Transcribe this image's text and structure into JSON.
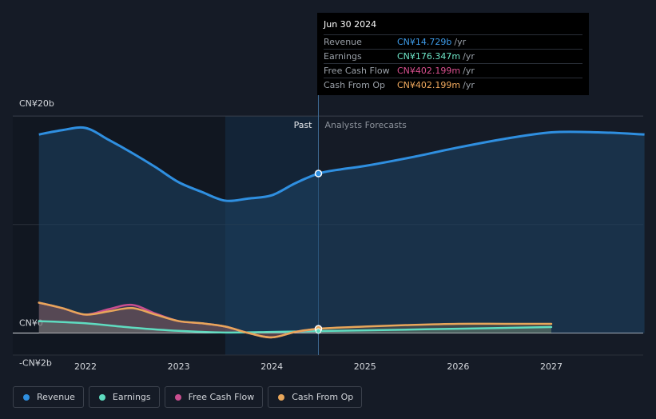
{
  "tooltip": {
    "date": "Jun 30 2024",
    "rows": [
      {
        "label": "Revenue",
        "value": "CN¥14.729b",
        "unit": "/yr",
        "color": "#3d9be9"
      },
      {
        "label": "Earnings",
        "value": "CN¥176.347m",
        "unit": "/yr",
        "color": "#6ee7c8"
      },
      {
        "label": "Free Cash Flow",
        "value": "CN¥402.199m",
        "unit": "/yr",
        "color": "#d9508f"
      },
      {
        "label": "Cash From Op",
        "value": "CN¥402.199m",
        "unit": "/yr",
        "color": "#f0a95e"
      }
    ]
  },
  "labels": {
    "past": "Past",
    "forecast": "Analysts Forecasts"
  },
  "legend": [
    {
      "label": "Revenue",
      "color": "#2f8fe0"
    },
    {
      "label": "Earnings",
      "color": "#5fdcc0"
    },
    {
      "label": "Free Cash Flow",
      "color": "#c94e8f"
    },
    {
      "label": "Cash From Op",
      "color": "#e8a65a"
    }
  ],
  "chart_data": {
    "type": "line",
    "y_tick_labels": [
      "CN¥20b",
      "CN¥0",
      "-CN¥2b"
    ],
    "ylim": [
      -2,
      20
    ],
    "x_tick_labels": [
      "2022",
      "2023",
      "2024",
      "2025",
      "2026",
      "2027"
    ],
    "xlim": [
      2021.5,
      2028.0
    ],
    "divider_x": 2024.5,
    "highlight_range": [
      2023.5,
      2024.5
    ],
    "grid": true,
    "legend_position": "bottom-left",
    "series": [
      {
        "name": "Revenue",
        "color": "#2f8fe0",
        "x": [
          2021.5,
          2021.75,
          2022.0,
          2022.25,
          2022.5,
          2022.75,
          2023.0,
          2023.25,
          2023.5,
          2023.75,
          2024.0,
          2024.25,
          2024.5,
          2024.75,
          2025.0,
          2025.5,
          2026.0,
          2026.5,
          2027.0,
          2027.5,
          2028.0
        ],
        "y": [
          18.3,
          18.7,
          18.9,
          17.8,
          16.6,
          15.3,
          13.9,
          13.0,
          12.2,
          12.4,
          12.7,
          13.8,
          14.7,
          15.1,
          15.4,
          16.2,
          17.1,
          17.9,
          18.5,
          18.5,
          18.3
        ]
      },
      {
        "name": "Earnings",
        "color": "#5fdcc0",
        "x": [
          2021.5,
          2022.0,
          2022.5,
          2023.0,
          2023.5,
          2024.0,
          2024.5,
          2025.0,
          2026.0,
          2027.0
        ],
        "y": [
          1.1,
          0.9,
          0.5,
          0.2,
          0.05,
          0.1,
          0.18,
          0.25,
          0.4,
          0.55
        ]
      },
      {
        "name": "Free Cash Flow",
        "color": "#c94e8f",
        "x": [
          2021.5,
          2021.75,
          2022.0,
          2022.25,
          2022.5,
          2022.75,
          2023.0,
          2023.25,
          2023.5,
          2023.75,
          2024.0,
          2024.25,
          2024.5
        ],
        "y": [
          2.8,
          2.3,
          1.7,
          2.2,
          2.6,
          1.8,
          1.1,
          0.9,
          0.6,
          0.0,
          -0.4,
          0.1,
          0.4
        ]
      },
      {
        "name": "Cash From Op",
        "color": "#e8a65a",
        "x": [
          2021.5,
          2021.75,
          2022.0,
          2022.25,
          2022.5,
          2022.75,
          2023.0,
          2023.25,
          2023.5,
          2023.75,
          2024.0,
          2024.25,
          2024.5,
          2025.0,
          2025.5,
          2026.0,
          2026.5,
          2027.0
        ],
        "y": [
          2.8,
          2.3,
          1.7,
          2.0,
          2.3,
          1.7,
          1.1,
          0.9,
          0.6,
          0.0,
          -0.4,
          0.1,
          0.4,
          0.6,
          0.75,
          0.85,
          0.85,
          0.85
        ]
      }
    ]
  }
}
